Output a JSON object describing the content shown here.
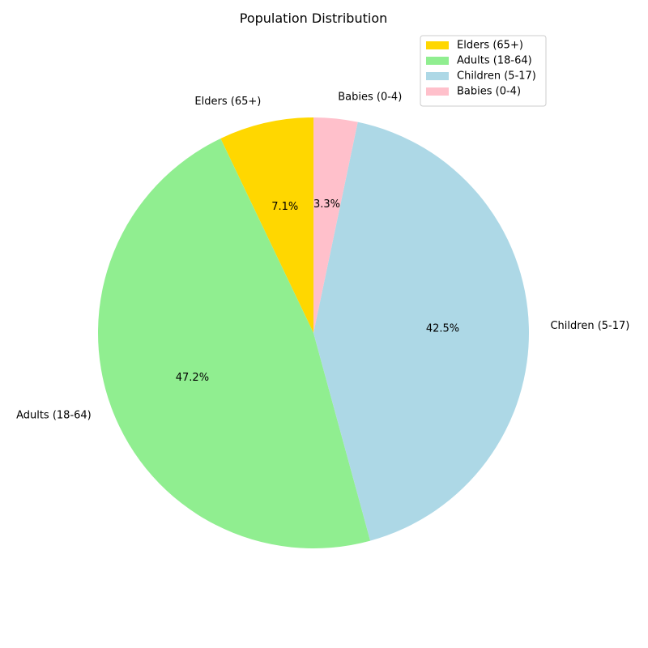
{
  "chart_data": {
    "type": "pie",
    "title": "Population Distribution",
    "slices": [
      {
        "label": "Elders (65+)",
        "value": 7.1,
        "pct_label": "7.1%",
        "color": "#FFD700"
      },
      {
        "label": "Adults (18-64)",
        "value": 47.2,
        "pct_label": "47.2%",
        "color": "#90EE90"
      },
      {
        "label": "Children (5-17)",
        "value": 42.5,
        "pct_label": "42.5%",
        "color": "#ADD8E6"
      },
      {
        "label": "Babies (0-4)",
        "value": 3.3,
        "pct_label": "3.3%",
        "color": "#FFC0CB"
      }
    ],
    "start_angle_deg": 90,
    "direction": "counterclockwise",
    "legend": {
      "placement": "top-right",
      "entries": [
        "Elders (65+)",
        "Adults (18-64)",
        "Children (5-17)",
        "Babies (0-4)"
      ]
    }
  }
}
